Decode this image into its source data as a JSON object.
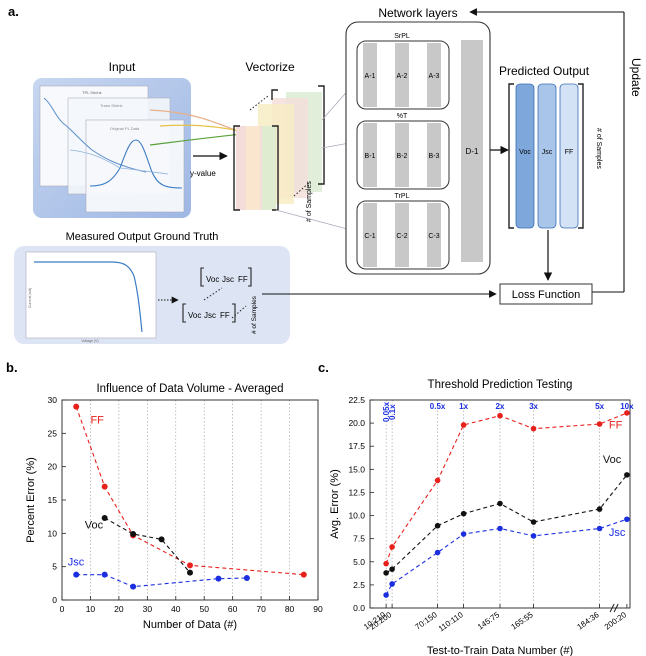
{
  "figure": {
    "panel_a": "a.",
    "panel_b": "b.",
    "panel_c": "c.",
    "input_title": "Input",
    "vectorize_title": "Vectorize",
    "network_title": "Network layers",
    "predicted_title": "Predicted Output",
    "update_label": "Update",
    "ground_truth_title": "Measured Output Ground Truth",
    "loss_label": "Loss Function",
    "y_value_label": "y-value",
    "samples_label": "# of Samples",
    "spectra_legend": [
      "TPL Shrink",
      "Trans Shrink",
      "Original PL Data"
    ],
    "branches": [
      {
        "name": "SrPL",
        "nodes": [
          "A-1",
          "A-2",
          "A-3"
        ]
      },
      {
        "name": "%T",
        "nodes": [
          "B-1",
          "B-2",
          "B-3"
        ]
      },
      {
        "name": "TrPL",
        "nodes": [
          "C-1",
          "C-2",
          "C-3"
        ]
      }
    ],
    "dense_node": "D-1",
    "outputs": [
      "Voc",
      "Jsc",
      "FF"
    ],
    "gt_row1": [
      "Voc",
      "Jsc",
      "FF"
    ],
    "gt_row2": [
      "Voc",
      "Jsc",
      "FF"
    ],
    "iv_xlabel": "Voltage (V)",
    "iv_ylabel": "Current (mA)"
  },
  "chart_data": [
    {
      "type": "scatter",
      "title": "Influence of Data Volume - Averaged",
      "xlabel": "Number of Data (#)",
      "ylabel": "Percent Error (%)",
      "xlim": [
        0,
        90
      ],
      "ylim": [
        0,
        30
      ],
      "xticks": [
        0,
        10,
        20,
        30,
        40,
        50,
        60,
        70,
        80,
        90
      ],
      "yticks": [
        0,
        5,
        10,
        15,
        20,
        25,
        30
      ],
      "grid": "vertical dotted",
      "series": [
        {
          "name": "FF",
          "color": "#e8201c",
          "x": [
            5,
            15,
            25,
            45,
            85
          ],
          "y": [
            29,
            17,
            9.7,
            5.2,
            3.8
          ]
        },
        {
          "name": "Voc",
          "color": "#111111",
          "x": [
            15,
            25,
            35,
            45
          ],
          "y": [
            12.3,
            9.9,
            9.1,
            4.1
          ]
        },
        {
          "name": "Jsc",
          "color": "#1b2fe0",
          "x": [
            5,
            15,
            25,
            55,
            65
          ],
          "y": [
            3.8,
            3.8,
            2.0,
            3.2,
            3.3
          ]
        }
      ]
    },
    {
      "type": "scatter",
      "title": "Threshold Prediction Testing",
      "xlabel": "Test-to-Train Data Number (#)",
      "ylabel": "Avg. Error (%)",
      "ylim": [
        0,
        22.5
      ],
      "yticks": [
        "0.0",
        "2.5",
        "5.0",
        "7.5",
        "10.0",
        "12.5",
        "15.0",
        "17.5",
        "20.0",
        "22.5"
      ],
      "categories": [
        "10:210",
        "20:200",
        "",
        "70:150",
        "110:110",
        "145:75",
        "165:55",
        "184:36",
        "200:20"
      ],
      "tick_labels": [
        "10:210",
        "20:200",
        "70:150",
        "110:110",
        "145:75",
        "165:55",
        "184:36",
        "200:20"
      ],
      "ratio_labels": [
        "0.05x",
        "0.1x",
        "0.5x",
        "1x",
        "2x",
        "3x",
        "5x",
        "10x"
      ],
      "grid": "vertical dotted",
      "axis_break": true,
      "series": [
        {
          "name": "FF",
          "color": "#e8201c",
          "y": [
            4.8,
            6.6,
            13.8,
            19.8,
            20.8,
            19.4,
            19.9,
            21.1
          ]
        },
        {
          "name": "Voc",
          "color": "#111111",
          "y": [
            3.8,
            4.2,
            8.9,
            10.2,
            11.3,
            9.3,
            10.7,
            14.4
          ]
        },
        {
          "name": "Jsc",
          "color": "#1b2fe0",
          "y": [
            1.4,
            2.6,
            6.0,
            8.0,
            8.6,
            7.8,
            8.6,
            9.6
          ]
        }
      ]
    }
  ]
}
